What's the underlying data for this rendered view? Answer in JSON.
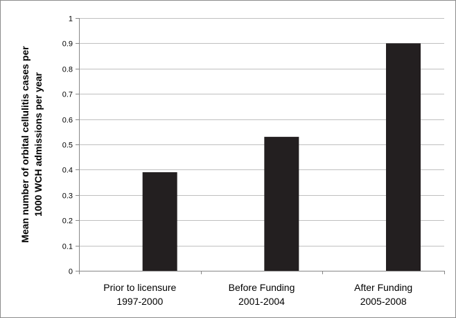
{
  "chart_data": {
    "type": "bar",
    "title": "",
    "xlabel": "",
    "ylabel_lines": [
      "Mean number of orbital cellulitis cases per",
      "1000 WCH admissions per year"
    ],
    "categories": [
      [
        "Prior to licensure",
        "1997-2000"
      ],
      [
        "Before Funding",
        "2001-2004"
      ],
      [
        "After Funding",
        "2005-2008"
      ]
    ],
    "values": [
      0.39,
      0.53,
      0.9
    ],
    "ylim": [
      0,
      1
    ],
    "yticks": [
      "0",
      "0.1",
      "0.2",
      "0.3",
      "0.4",
      "0.5",
      "0.6",
      "0.7",
      "0.8",
      "0.9",
      "1"
    ],
    "grid": true,
    "legend": "none",
    "bar_color": "#231f20",
    "grid_color": "#bfbfbf"
  }
}
